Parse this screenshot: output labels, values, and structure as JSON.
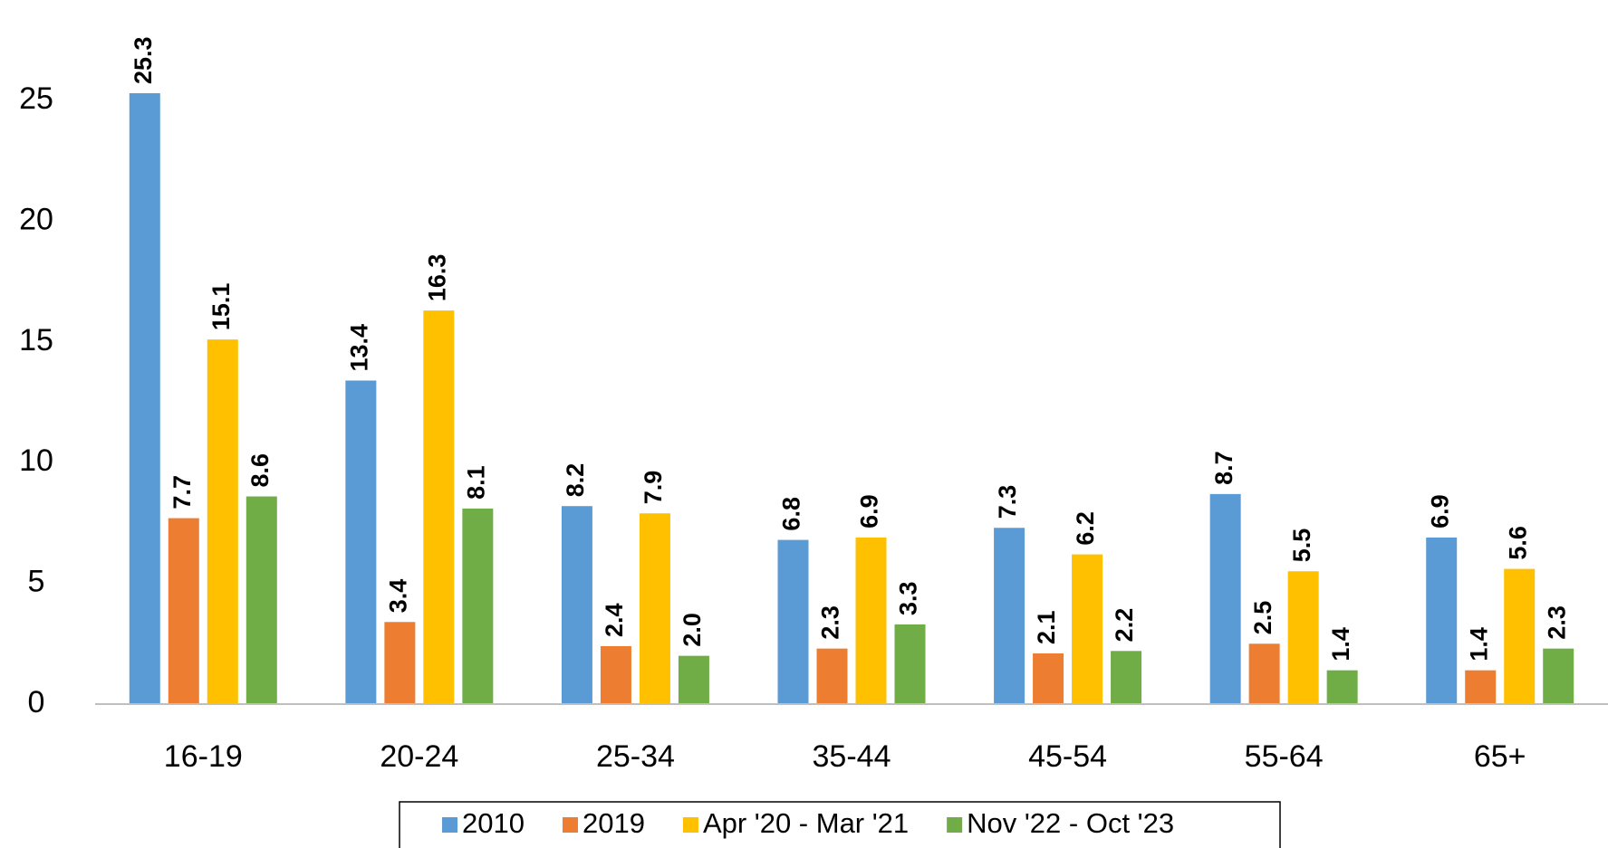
{
  "chart_data": {
    "type": "bar",
    "categories": [
      "16-19",
      "20-24",
      "25-34",
      "35-44",
      "45-54",
      "55-64",
      "65+"
    ],
    "series": [
      {
        "name": "2010",
        "color": "#5b9bd5",
        "values": [
          25.3,
          13.4,
          8.2,
          6.8,
          7.3,
          8.7,
          6.9
        ],
        "value_labels": [
          "25.3",
          "13.4",
          "8.2",
          "6.8",
          "7.3",
          "8.7",
          "6.9"
        ]
      },
      {
        "name": "2019",
        "color": "#ed7d31",
        "values": [
          7.7,
          3.4,
          2.4,
          2.3,
          2.1,
          2.5,
          1.4
        ],
        "value_labels": [
          "7.7",
          "3.4",
          "2.4",
          "2.3",
          "2.1",
          "2.5",
          "1.4"
        ]
      },
      {
        "name": "Apr '20 - Mar '21",
        "color": "#ffc000",
        "values": [
          15.1,
          16.3,
          7.9,
          6.9,
          6.2,
          5.5,
          5.6
        ],
        "value_labels": [
          "15.1",
          "16.3",
          "7.9",
          "6.9",
          "6.2",
          "5.5",
          "5.6"
        ]
      },
      {
        "name": "Nov '22 - Oct '23",
        "color": "#70ad47",
        "values": [
          8.6,
          8.1,
          2.0,
          3.3,
          2.2,
          1.4,
          2.3
        ],
        "value_labels": [
          "8.6",
          "8.1",
          "2.0",
          "3.3",
          "2.2",
          "1.4",
          "2.3"
        ]
      }
    ],
    "ylim": [
      0,
      25
    ],
    "yticks": [
      0,
      5,
      10,
      15,
      20,
      25
    ],
    "grid": false,
    "legend": "bottom"
  }
}
